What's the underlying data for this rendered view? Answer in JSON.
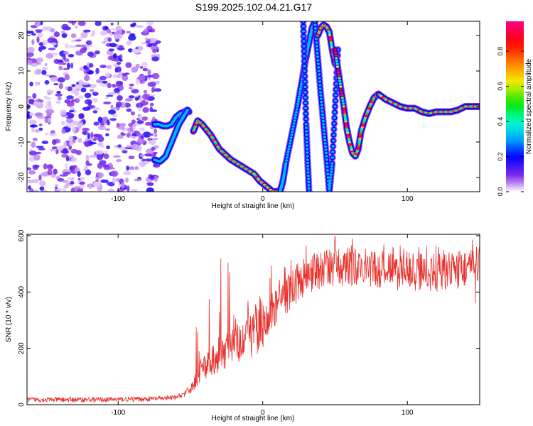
{
  "title": "S199.2025.102.04.21.G17",
  "chart_data": [
    {
      "type": "heatmap",
      "xlabel": "Height of straight line (km)",
      "ylabel": "Frequency (Hz)",
      "xlim": [
        -163,
        150
      ],
      "ylim": [
        -24,
        24
      ],
      "xticks": [
        -100,
        0,
        100
      ],
      "yticks": [
        -20,
        -10,
        0,
        10,
        20
      ],
      "colorbar": {
        "label": "Normalized spectral amplitude",
        "range": [
          0,
          0.97
        ],
        "ticks": [
          "0.0",
          "0.2",
          "0.4",
          "0.6",
          "0.8"
        ],
        "tick_values": [
          0,
          0.2,
          0.4,
          0.6,
          0.8
        ]
      },
      "ridge_segments": [
        {
          "x": [
            -75,
            -72,
            -69,
            -66,
            -63,
            -60,
            -57,
            -54,
            -52,
            -51
          ],
          "y": [
            -5,
            -5,
            -5.5,
            -5.5,
            -5,
            -3,
            -2,
            -1.5,
            -1,
            -1.5
          ]
        },
        {
          "x": [
            -75,
            -71,
            -67,
            -64,
            -61,
            -58,
            -55,
            -52
          ],
          "y": [
            -15,
            -15.5,
            -14,
            -11,
            -8,
            -5,
            -3,
            -1
          ]
        },
        {
          "x": [
            -48,
            -45,
            -42,
            -39,
            -36,
            -33,
            -30,
            -26,
            -22,
            -18,
            -14,
            -10,
            -6,
            -2,
            1,
            4,
            7,
            10,
            12
          ],
          "y": [
            -7,
            -4,
            -5,
            -6.5,
            -8,
            -10,
            -12,
            -13.5,
            -15,
            -16,
            -17,
            -18,
            -19,
            -21,
            -22,
            -23,
            -24,
            -24,
            -23.5
          ]
        },
        {
          "x": [
            12,
            14,
            16,
            20,
            24,
            27,
            30,
            32,
            34,
            36
          ],
          "y": [
            -24,
            -21,
            -16,
            -8,
            0,
            7,
            14,
            18,
            22,
            24
          ]
        },
        {
          "x": [
            28,
            29,
            30,
            31,
            32
          ],
          "y": [
            24,
            10,
            -5,
            -15,
            -24
          ]
        },
        {
          "x": [
            36,
            38,
            40,
            42,
            44,
            46,
            48,
            50,
            52
          ],
          "y": [
            24,
            14,
            4,
            -5,
            -14,
            -24,
            -16,
            0,
            16
          ]
        },
        {
          "x": [
            38,
            40,
            42,
            44,
            46,
            48,
            50
          ],
          "y": [
            20,
            22,
            23,
            22.5,
            21,
            16,
            12
          ]
        },
        {
          "x": [
            50,
            53,
            56,
            58,
            60,
            62,
            64,
            66,
            68,
            71,
            74,
            77,
            80
          ],
          "y": [
            16,
            8,
            0,
            -6,
            -10,
            -13,
            -14,
            -12,
            -7,
            -3,
            0,
            2.5,
            3.5
          ]
        },
        {
          "x": [
            80,
            85,
            90,
            95,
            100,
            105,
            110,
            115,
            120,
            125,
            130,
            135,
            140,
            145,
            150
          ],
          "y": [
            3.5,
            2,
            1,
            0,
            -0.5,
            -0.5,
            -1.5,
            -2,
            -1.5,
            -1.5,
            -1.5,
            -1,
            0,
            0,
            0
          ]
        }
      ],
      "noise_region_x": [
        -163,
        -72
      ]
    },
    {
      "type": "line",
      "xlabel": "Height of straight line (km)",
      "ylabel": "SNR (10 * v/v)",
      "xlim": [
        -163,
        150
      ],
      "ylim": [
        0,
        605
      ],
      "xticks": [
        -100,
        0,
        100
      ],
      "yticks": [
        0,
        200,
        400,
        600
      ],
      "color": "#e8302c",
      "envelope": {
        "x": [
          -163,
          -120,
          -80,
          -60,
          -52,
          -48,
          -45,
          -40,
          -35,
          -30,
          -25,
          -20,
          -15,
          -10,
          -5,
          0,
          5,
          10,
          15,
          20,
          25,
          30,
          35,
          40,
          45,
          50,
          60,
          70,
          80,
          90,
          100,
          110,
          120,
          130,
          140,
          150
        ],
        "y": [
          18,
          18,
          20,
          25,
          45,
          70,
          100,
          130,
          160,
          180,
          200,
          215,
          235,
          250,
          265,
          290,
          320,
          350,
          385,
          410,
          440,
          460,
          470,
          480,
          485,
          490,
          490,
          485,
          480,
          475,
          475,
          470,
          470,
          475,
          485,
          495
        ]
      },
      "spikes": [
        {
          "x": -46,
          "y": 275
        },
        {
          "x": -45,
          "y": 260
        },
        {
          "x": -44,
          "y": 190
        },
        {
          "x": -37,
          "y": 375
        },
        {
          "x": -36,
          "y": 160
        },
        {
          "x": -30,
          "y": 330
        },
        {
          "x": -29,
          "y": 520
        },
        {
          "x": -24,
          "y": 505
        },
        {
          "x": -23,
          "y": 470
        },
        {
          "x": -22,
          "y": 250
        },
        {
          "x": -20,
          "y": 320
        },
        {
          "x": -10,
          "y": 340
        },
        {
          "x": -2,
          "y": 385
        },
        {
          "x": 5,
          "y": 450
        },
        {
          "x": 6,
          "y": 495
        },
        {
          "x": 15,
          "y": 490
        },
        {
          "x": 30,
          "y": 565
        },
        {
          "x": 50,
          "y": 600
        },
        {
          "x": 62,
          "y": 590
        },
        {
          "x": 90,
          "y": 560
        },
        {
          "x": 108,
          "y": 560
        },
        {
          "x": 125,
          "y": 550
        },
        {
          "x": 145,
          "y": 585
        },
        {
          "x": 147,
          "y": 360
        }
      ]
    }
  ]
}
